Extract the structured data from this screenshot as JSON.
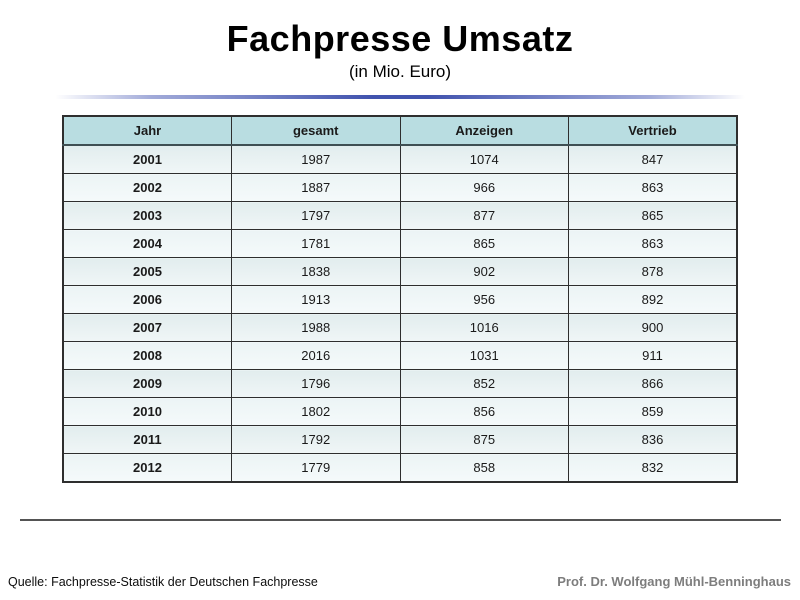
{
  "slide": {
    "title": "Fachpresse Umsatz",
    "subtitle": "(in Mio. Euro)",
    "footer_left": "Quelle: Fachpresse-Statistik der Deutschen Fachpresse",
    "footer_right": "Prof. Dr. Wolfgang Mühl-Benninghaus"
  },
  "table": {
    "columns": [
      "Jahr",
      "gesamt",
      "Anzeigen",
      "Vertrieb"
    ],
    "rows": [
      [
        "2001",
        "1987",
        "1074",
        "847"
      ],
      [
        "2002",
        "1887",
        "966",
        "863"
      ],
      [
        "2003",
        "1797",
        "877",
        "865"
      ],
      [
        "2004",
        "1781",
        "865",
        "863"
      ],
      [
        "2005",
        "1838",
        "902",
        "878"
      ],
      [
        "2006",
        "1913",
        "956",
        "892"
      ],
      [
        "2007",
        "1988",
        "1016",
        "900"
      ],
      [
        "2008",
        "2016",
        "1031",
        "911"
      ],
      [
        "2009",
        "1796",
        "852",
        "866"
      ],
      [
        "2010",
        "1802",
        "856",
        "859"
      ],
      [
        "2011",
        "1792",
        "875",
        "836"
      ],
      [
        "2012",
        "1779",
        "858",
        "832"
      ]
    ]
  },
  "chart_data": {
    "type": "table",
    "title": "Fachpresse Umsatz (in Mio. Euro)",
    "categories": [
      "2001",
      "2002",
      "2003",
      "2004",
      "2005",
      "2006",
      "2007",
      "2008",
      "2009",
      "2010",
      "2011",
      "2012"
    ],
    "series": [
      {
        "name": "gesamt",
        "values": [
          1987,
          1887,
          1797,
          1781,
          1838,
          1913,
          1988,
          2016,
          1796,
          1802,
          1792,
          1779
        ]
      },
      {
        "name": "Anzeigen",
        "values": [
          1074,
          966,
          877,
          865,
          902,
          956,
          1016,
          1031,
          852,
          856,
          875,
          858
        ]
      },
      {
        "name": "Vertrieb",
        "values": [
          847,
          863,
          865,
          863,
          878,
          892,
          900,
          911,
          866,
          859,
          836,
          832
        ]
      }
    ]
  },
  "colors": {
    "accent_line": "#4153ae",
    "table_header_bg": "#b9dde1",
    "row_odd_bg": "#e2edee",
    "row_even_bg": "#ecf4f5",
    "credit_text": "#7d7d7d"
  }
}
